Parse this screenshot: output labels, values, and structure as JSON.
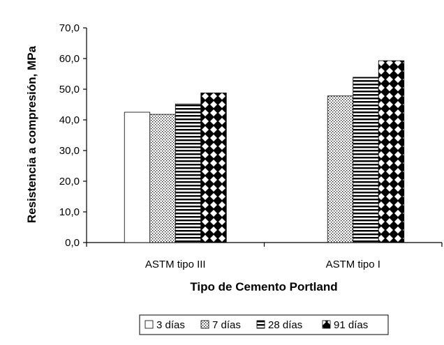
{
  "chart_data": {
    "type": "bar",
    "title": "",
    "xlabel": "Tipo de Cemento Portland",
    "ylabel": "Resistencia a compresión, MPa",
    "ylim": [
      0,
      70
    ],
    "ytick_step": 10,
    "ytick_labels": [
      "0,0",
      "10,0",
      "20,0",
      "30,0",
      "40,0",
      "50,0",
      "60,0",
      "70,0"
    ],
    "categories": [
      "ASTM tipo III",
      "ASTM tipo I"
    ],
    "series": [
      {
        "name": "3 días",
        "values": [
          42.5,
          null
        ],
        "fill": "white"
      },
      {
        "name": "7 días",
        "values": [
          41.8,
          47.8
        ],
        "fill": "dotted"
      },
      {
        "name": "28 días",
        "values": [
          45.2,
          53.9
        ],
        "fill": "horizontal-stripes"
      },
      {
        "name": "91 días",
        "values": [
          48.8,
          59.3
        ],
        "fill": "diamond-checker"
      }
    ],
    "grid": false,
    "legend_position": "bottom-center"
  }
}
